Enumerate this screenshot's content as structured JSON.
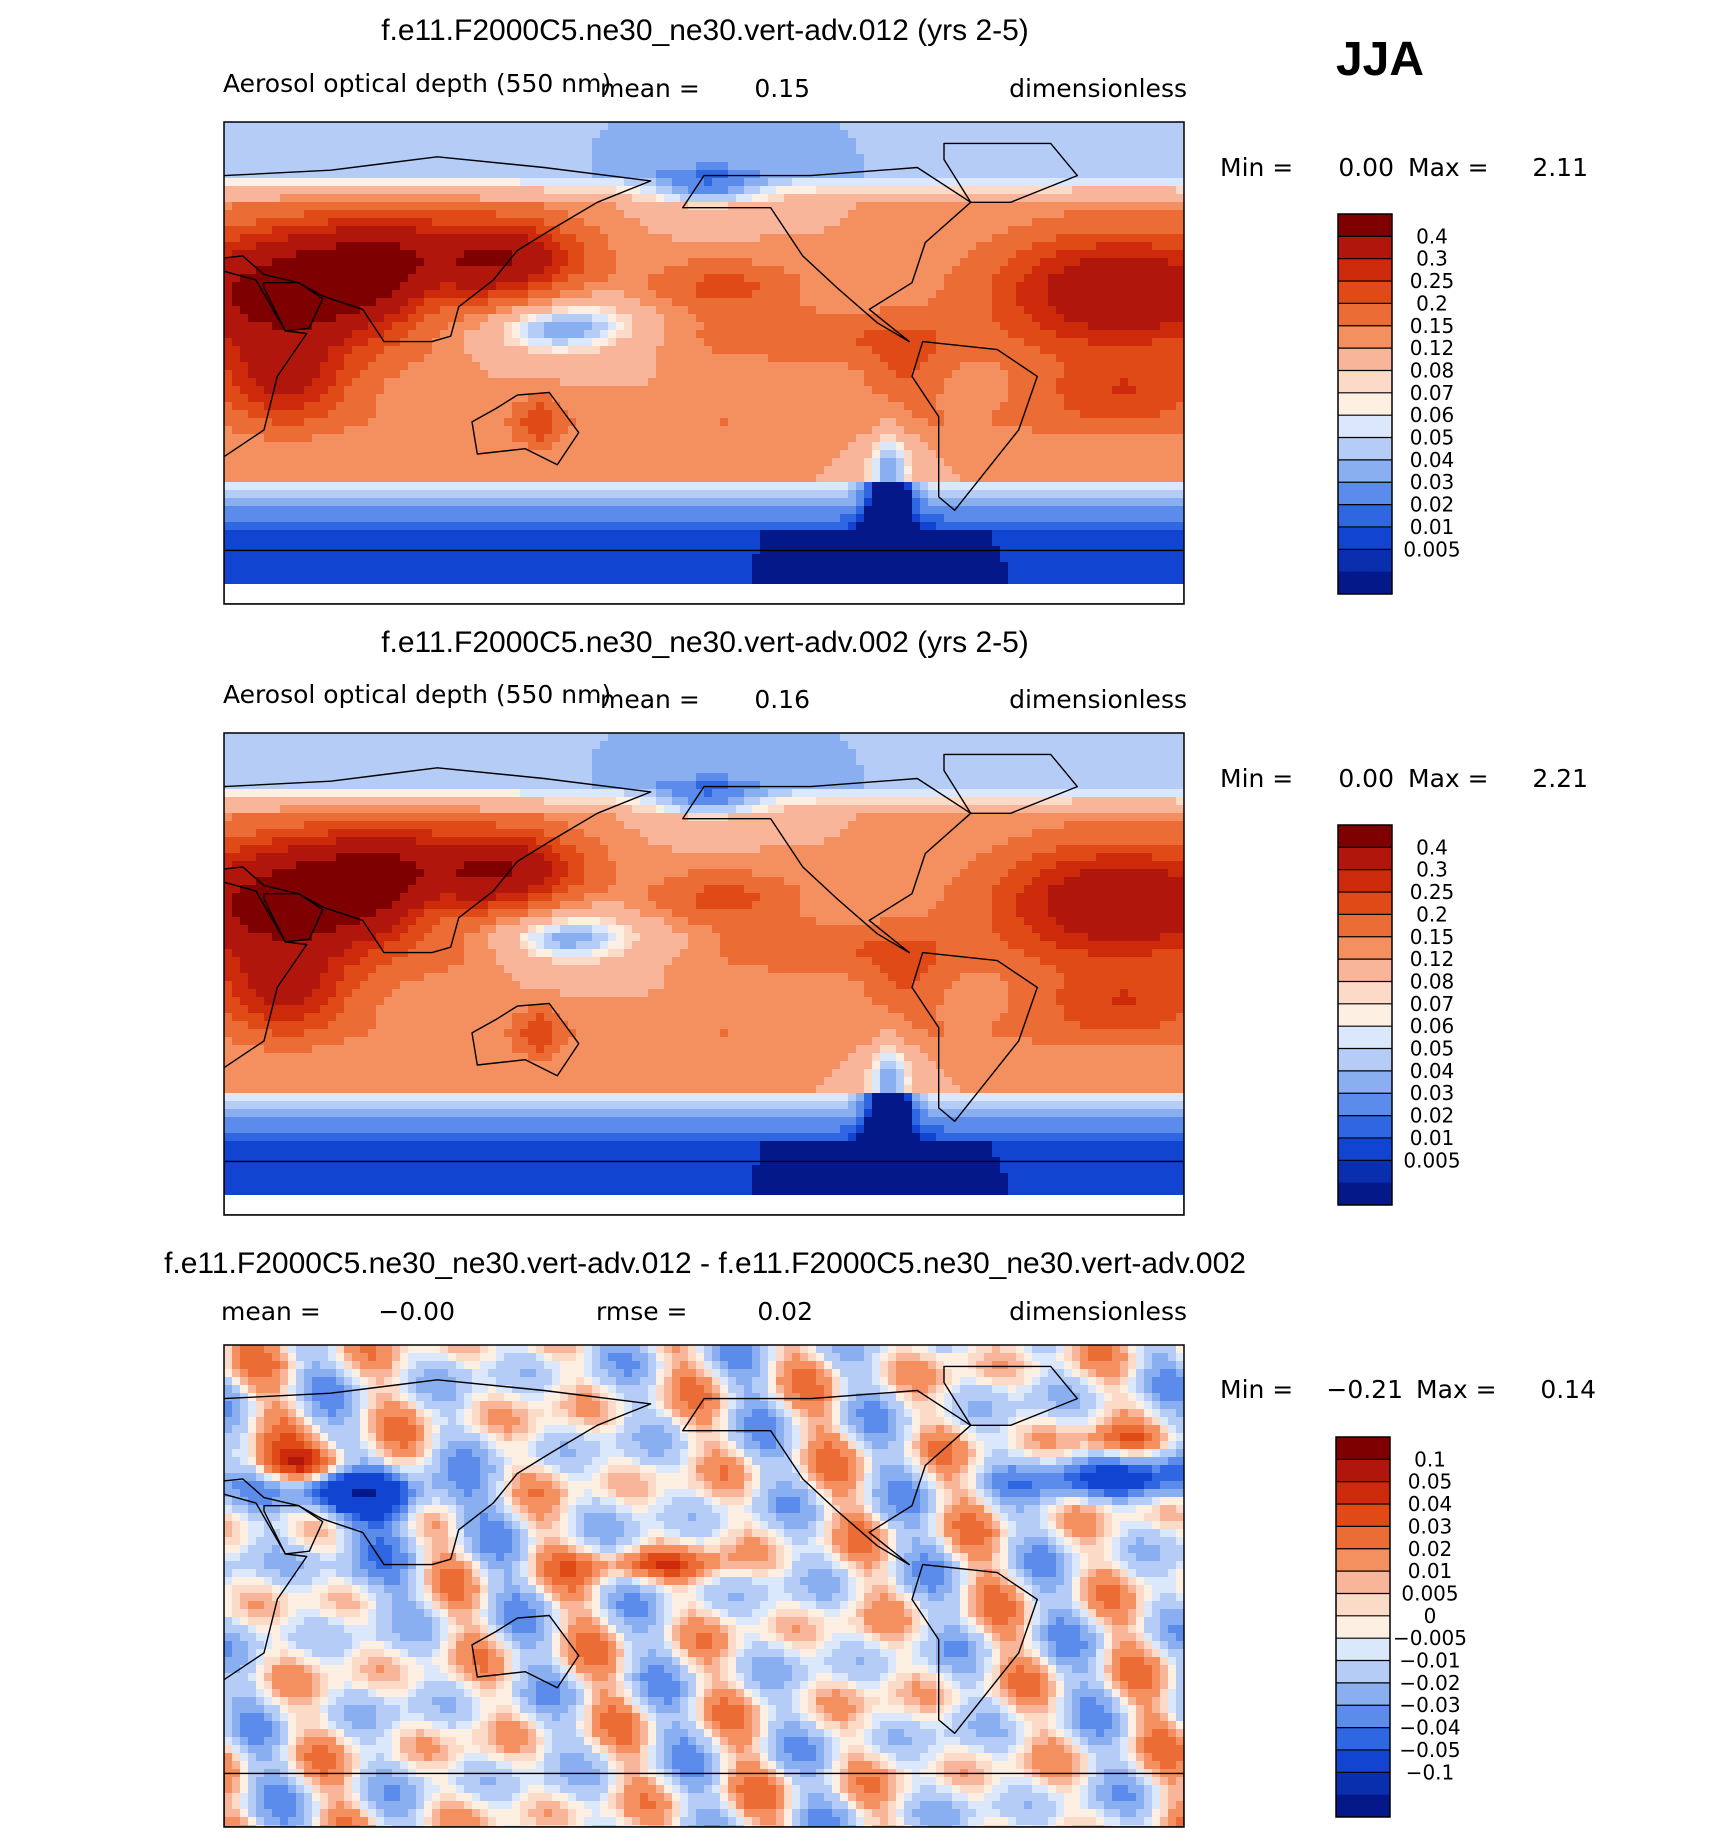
{
  "season": "JJA",
  "chart_data": [
    {
      "type": "heatmap",
      "title": "f.e11.F2000C5.ne30_ne30.vert-adv.012 (yrs 2-5)",
      "variable": "Aerosol optical depth (550 nm)",
      "units": "dimensionless",
      "stats": {
        "mean_label": "mean =",
        "mean": "0.15",
        "min_label": "Min =",
        "min": "0.00",
        "max_label": "Max =",
        "max": "2.11"
      },
      "field": "aod",
      "variant": 0,
      "levels": [
        "0.4",
        "0.3",
        "0.25",
        "0.2",
        "0.15",
        "0.12",
        "0.08",
        "0.07",
        "0.06",
        "0.05",
        "0.04",
        "0.03",
        "0.02",
        "0.01",
        "0.005"
      ],
      "colors": [
        "#7f0000",
        "#b0160b",
        "#cc2a0a",
        "#e04a16",
        "#ec6c36",
        "#f48f60",
        "#f9b59a",
        "#fbdac8",
        "#fdf0e2",
        "#dbe8fb",
        "#b5ccf7",
        "#8aaff1",
        "#5b8cec",
        "#2f66e2",
        "#1145d1",
        "#0a2fae",
        "#05188a"
      ],
      "grid": false
    },
    {
      "type": "heatmap",
      "title": "f.e11.F2000C5.ne30_ne30.vert-adv.002 (yrs 2-5)",
      "variable": "Aerosol optical depth (550 nm)",
      "units": "dimensionless",
      "stats": {
        "mean_label": "mean =",
        "mean": "0.16",
        "min_label": "Min =",
        "min": "0.00",
        "max_label": "Max =",
        "max": "2.21"
      },
      "field": "aod",
      "variant": 1,
      "levels": [
        "0.4",
        "0.3",
        "0.25",
        "0.2",
        "0.15",
        "0.12",
        "0.08",
        "0.07",
        "0.06",
        "0.05",
        "0.04",
        "0.03",
        "0.02",
        "0.01",
        "0.005"
      ],
      "colors": [
        "#7f0000",
        "#b0160b",
        "#cc2a0a",
        "#e04a16",
        "#ec6c36",
        "#f48f60",
        "#f9b59a",
        "#fbdac8",
        "#fdf0e2",
        "#dbe8fb",
        "#b5ccf7",
        "#8aaff1",
        "#5b8cec",
        "#2f66e2",
        "#1145d1",
        "#0a2fae",
        "#05188a"
      ],
      "grid": false
    },
    {
      "type": "heatmap",
      "title": "f.e11.F2000C5.ne30_ne30.vert-adv.012 - f.e11.F2000C5.ne30_ne30.vert-adv.002",
      "units": "dimensionless",
      "stats": {
        "mean_label": "mean =",
        "mean": "−0.00",
        "rmse_label": "rmse =",
        "rmse": "0.02",
        "min_label": "Min =",
        "min": "−0.21",
        "max_label": "Max =",
        "max": "0.14"
      },
      "field": "diff",
      "variant": 2,
      "levels": [
        "0.1",
        "0.05",
        "0.04",
        "0.03",
        "0.02",
        "0.01",
        "0.005",
        "0",
        "−0.005",
        "−0.01",
        "−0.02",
        "−0.03",
        "−0.04",
        "−0.05",
        "−0.1"
      ],
      "colors": [
        "#7f0000",
        "#b0160b",
        "#cc2a0a",
        "#e04a16",
        "#ec6c36",
        "#f48f60",
        "#f9b59a",
        "#fbdac8",
        "#fdf0e2",
        "#dbe8fb",
        "#b5ccf7",
        "#8aaff1",
        "#5b8cec",
        "#2f66e2",
        "#1145d1",
        "#0a2fae",
        "#05188a"
      ],
      "grid": false
    }
  ]
}
